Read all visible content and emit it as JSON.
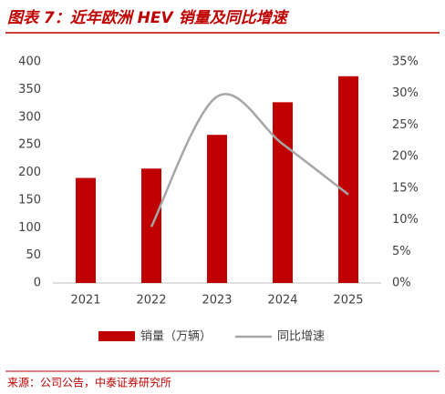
{
  "chart_data": {
    "type": "bar-line",
    "title": "图表 7：近年欧洲 HEV 销量及同比增速",
    "source": "来源：公司公告，中泰证券研究所",
    "categories": [
      "2021",
      "2022",
      "2023",
      "2024",
      "2025"
    ],
    "series": [
      {
        "name": "销量（万辆）",
        "type": "bar",
        "color": "#c00000",
        "values": [
          190,
          207,
          268,
          327,
          374
        ]
      },
      {
        "name": "同比增速",
        "type": "line",
        "axis": "y2",
        "color": "#a6a6a6",
        "values": [
          null,
          8.9,
          29.5,
          22,
          14
        ]
      }
    ],
    "ylim": [
      0,
      400
    ],
    "yticks": [
      0,
      50,
      100,
      150,
      200,
      250,
      300,
      350,
      400
    ],
    "y2lim": [
      0,
      35
    ],
    "y2ticks": [
      {
        "value": 0,
        "label": "0%"
      },
      {
        "value": 5,
        "label": "5%"
      },
      {
        "value": 10,
        "label": "10%"
      },
      {
        "value": 15,
        "label": "15%"
      },
      {
        "value": 20,
        "label": "20%"
      },
      {
        "value": 25,
        "label": "25%"
      },
      {
        "value": 30,
        "label": "30%"
      },
      {
        "value": 35,
        "label": "35%"
      }
    ],
    "legend": "bottom"
  }
}
